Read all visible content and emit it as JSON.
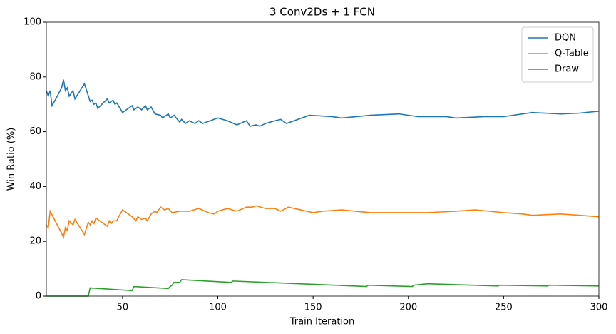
{
  "chart_data": {
    "type": "line",
    "title": "3 Conv2Ds + 1 FCN",
    "x_label": "Train Iteration",
    "y_label": "Win Ratio (%)",
    "xlim": [
      10,
      300
    ],
    "ylim": [
      0,
      100
    ],
    "xticks": [
      50,
      100,
      150,
      200,
      250,
      300
    ],
    "yticks": [
      0,
      20,
      40,
      60,
      80,
      100
    ],
    "legend": "upper right",
    "series": [
      {
        "name": "DQN",
        "color": "#1f77b4",
        "x": [
          10,
          11,
          12,
          13,
          15,
          18,
          19,
          20,
          21,
          22,
          24,
          25,
          30,
          33,
          34,
          35,
          36,
          37,
          42,
          43,
          45,
          46,
          47,
          50,
          55,
          56,
          58,
          60,
          62,
          63,
          65,
          67,
          70,
          71,
          74,
          75,
          77,
          80,
          81,
          83,
          85,
          88,
          90,
          92,
          100,
          105,
          110,
          115,
          117,
          120,
          122,
          125,
          130,
          133,
          136,
          148,
          160,
          165,
          180,
          195,
          205,
          220,
          225,
          240,
          250,
          265,
          280,
          290,
          300
        ],
        "values": [
          75,
          73,
          75,
          69.5,
          72,
          76,
          79,
          75,
          76,
          73,
          75,
          72,
          77.5,
          71,
          71.5,
          70,
          70.5,
          68.5,
          72,
          70.5,
          71.5,
          70,
          70.5,
          67,
          69.5,
          68,
          69,
          68,
          69.5,
          68,
          69,
          66.5,
          66,
          65,
          66.5,
          65,
          66,
          63.5,
          64.5,
          63,
          64,
          63,
          64,
          63,
          65,
          64,
          62.5,
          64,
          62,
          62.5,
          62,
          63,
          64,
          64.5,
          63,
          66,
          65.5,
          65,
          66,
          66.5,
          65.5,
          65.5,
          65,
          65.5,
          65.5,
          67,
          66.5,
          66.8,
          67.5
        ]
      },
      {
        "name": "Q-Table",
        "color": "#ff7f0e",
        "x": [
          10,
          11,
          12,
          15,
          18,
          19,
          20,
          21,
          22,
          24,
          25,
          30,
          32,
          33,
          34,
          35,
          36,
          37,
          41,
          42,
          43,
          44,
          45,
          47,
          48,
          50,
          55,
          57,
          58,
          60,
          62,
          63,
          65,
          67,
          68,
          70,
          72,
          74,
          76,
          80,
          85,
          90,
          95,
          98,
          100,
          105,
          110,
          115,
          118,
          120,
          125,
          130,
          133,
          137,
          150,
          155,
          165,
          180,
          195,
          210,
          225,
          235,
          250,
          260,
          265,
          280,
          290,
          300
        ],
        "values": [
          26,
          25,
          31,
          27,
          23,
          21.5,
          25,
          24,
          27.5,
          26,
          28,
          22.5,
          27,
          26,
          27.5,
          26.5,
          28.5,
          28,
          26,
          25.5,
          27.5,
          26.5,
          27.5,
          27.5,
          29,
          31.5,
          29,
          27.5,
          29,
          28,
          28.5,
          27.5,
          30,
          31,
          30.5,
          32.5,
          31.5,
          32,
          30.5,
          31,
          31,
          32,
          30.5,
          30,
          31,
          32,
          31,
          32.5,
          32.5,
          33,
          32,
          32,
          31,
          32.5,
          30.5,
          31,
          31.5,
          30.5,
          30.5,
          30.5,
          31,
          31.5,
          30.5,
          30,
          29.5,
          30,
          29.5,
          29
        ]
      },
      {
        "name": "Draw",
        "color": "#2ca02c",
        "x": [
          10,
          32,
          33,
          55,
          56,
          74,
          75,
          76,
          77,
          80,
          81,
          107,
          108,
          178,
          179,
          202,
          203,
          210,
          247,
          248,
          273,
          274,
          300
        ],
        "values": [
          0,
          0,
          3,
          2,
          3.5,
          2.8,
          3.5,
          4,
          5,
          5,
          6,
          5,
          5.5,
          3.5,
          4,
          3.5,
          4,
          4.5,
          3.7,
          4,
          3.7,
          4,
          3.7
        ]
      }
    ]
  }
}
